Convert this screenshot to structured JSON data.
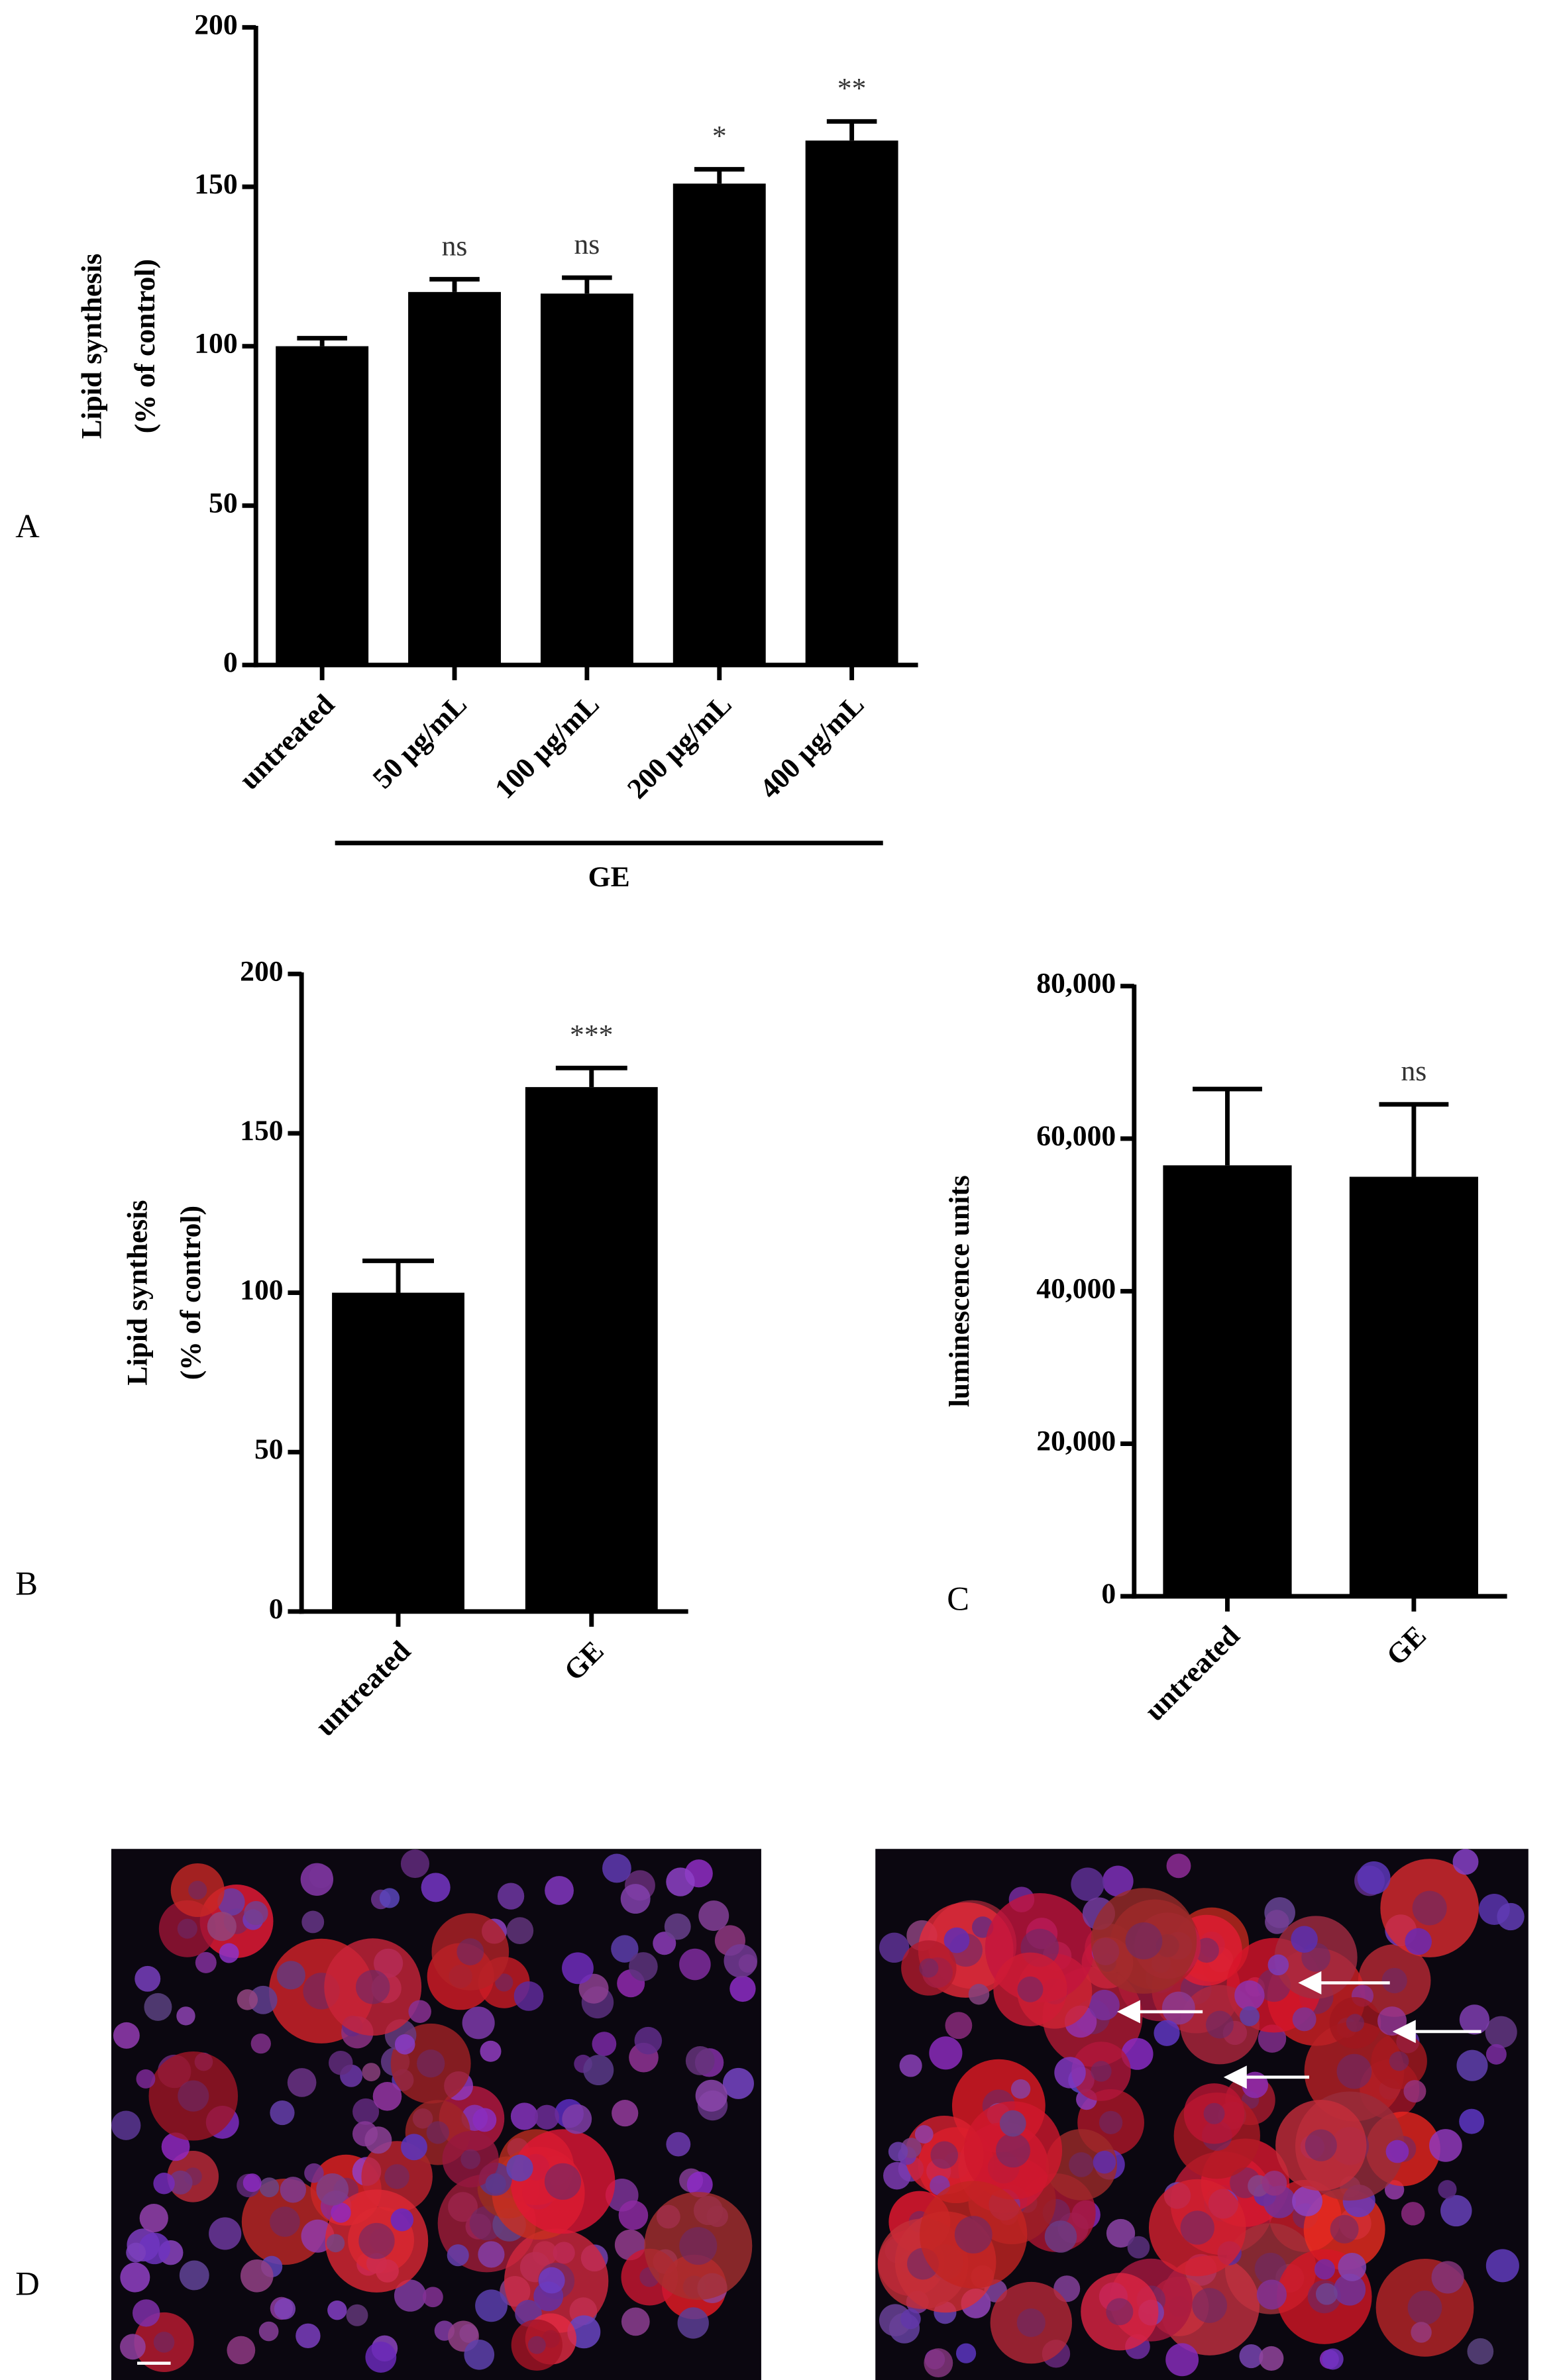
{
  "chart_data": [
    {
      "type": "bar",
      "panel_label": "A",
      "ylabel": [
        "Lipid synthesis",
        "(% of control)"
      ],
      "categories": [
        "untreated",
        "50 µg/mL",
        "100 µg/mL",
        "200 µg/mL",
        "400 µg/mL"
      ],
      "values": [
        100,
        117,
        116.5,
        151,
        164.5
      ],
      "errors": [
        2.5,
        4,
        5,
        4.5,
        6
      ],
      "annotations": [
        null,
        "ns",
        "ns",
        "*",
        "**"
      ],
      "group_label": "GE",
      "color": "#000000",
      "ylim": [
        0,
        200
      ],
      "yticks": [
        0,
        50,
        100,
        150,
        200
      ]
    },
    {
      "type": "bar",
      "panel_label": "B",
      "ylabel": [
        "Lipid synthesis",
        "(% of control)"
      ],
      "categories": [
        "untreated",
        "GE"
      ],
      "values": [
        100,
        164.5
      ],
      "errors": [
        10,
        6
      ],
      "annotations": [
        null,
        "***"
      ],
      "color": "#000000",
      "ylim": [
        0,
        200
      ],
      "yticks": [
        0,
        50,
        100,
        150,
        200
      ]
    },
    {
      "type": "bar",
      "panel_label": "C",
      "ylabel": [
        "luminescence units"
      ],
      "categories": [
        "untreated",
        "GE"
      ],
      "values": [
        56500,
        55000
      ],
      "errors": [
        10000,
        9500
      ],
      "annotations": [
        null,
        "ns"
      ],
      "color": "#000000",
      "ylim": [
        0,
        80000
      ],
      "yticks": [
        0,
        {
          "value": 20000,
          "label": "20,000"
        },
        {
          "value": 40000,
          "label": "40,000"
        },
        {
          "value": 60000,
          "label": "60,000"
        },
        {
          "value": 80000,
          "label": "80,000"
        }
      ]
    }
  ],
  "panel_d": {
    "label": "D"
  }
}
